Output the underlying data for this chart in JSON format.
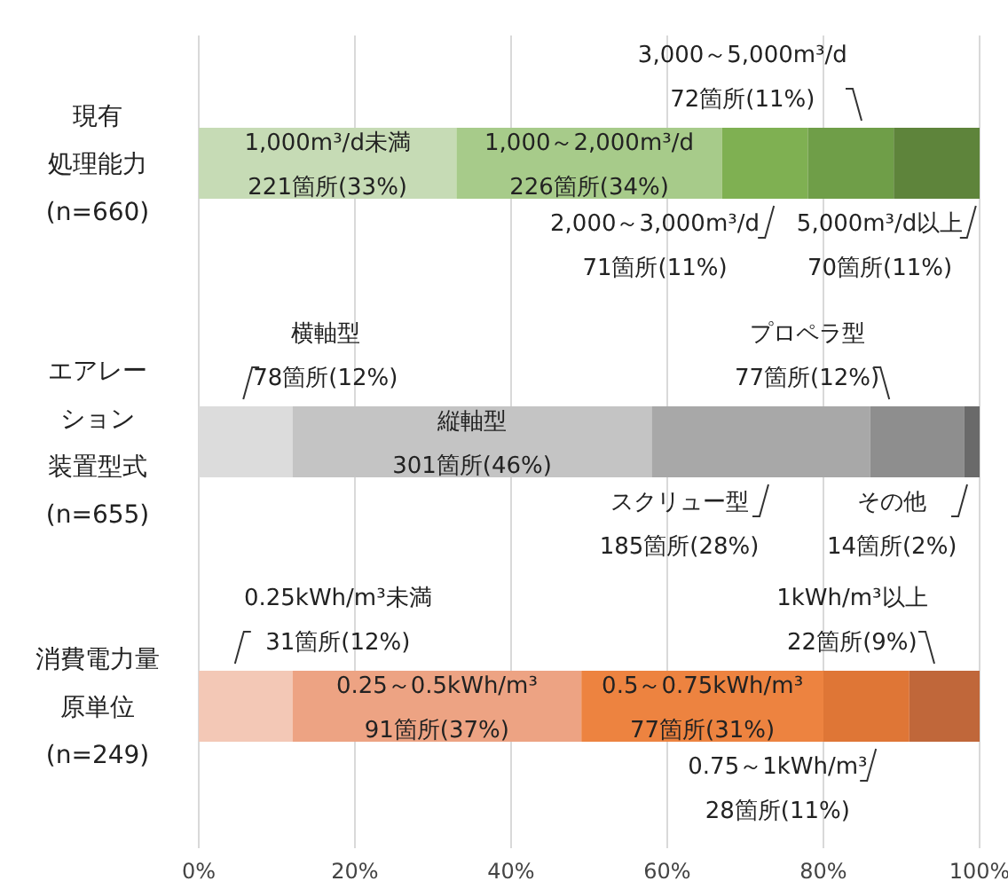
{
  "chart_data": {
    "type": "bar",
    "orientation": "horizontal",
    "stacked": true,
    "categories": [
      "現有処理能力(n=660)",
      "エアレーション装置型式(n=655)",
      "消費電力量原単位(n=249)"
    ],
    "series": [
      {
        "colors": [
          "#c6dbb5",
          "#dcdcdc",
          "#f3c8b6"
        ],
        "values": [
          33,
          12,
          12
        ],
        "value_labels": [
          "1,000m³/d未満\n221箇所(33%)",
          "横軸型\n78箇所(12%)",
          "0.25kWh/m³未満\n31箇所(12%)"
        ]
      },
      {
        "colors": [
          "#a7cb8a",
          "#c4c4c4",
          "#eda383"
        ],
        "values": [
          34,
          46,
          37
        ],
        "value_labels": [
          "1,000～2,000m³/d\n226箇所(34%)",
          "縦軸型\n301箇所(46%)",
          "0.25～0.5kWh/m³\n91箇所(37%)"
        ]
      },
      {
        "colors": [
          "#7fb052",
          "#a8a8a8",
          "#ed8340"
        ],
        "values": [
          11,
          28,
          31
        ],
        "value_labels": [
          "2,000～3,000m³/d\n71箇所(11%)",
          "スクリュー型\n185箇所(28%)",
          "0.5～0.75kWh/m³\n77箇所(31%)"
        ]
      },
      {
        "colors": [
          "#6f9e48",
          "#8e8e8e",
          "#df7636"
        ],
        "values": [
          11,
          12,
          11
        ],
        "value_labels": [
          "3,000～5,000m³/d\n72箇所(11%)",
          "プロペラ型\n77箇所(12%)",
          "0.75～1kWh/m³\n28箇所(11%)"
        ]
      },
      {
        "colors": [
          "#5e843b",
          "#6a6a6a",
          "#c0673a"
        ],
        "values": [
          11,
          2,
          9
        ],
        "value_labels": [
          "5,000m³/d以上\n70箇所(11%)",
          "その他\n14箇所(2%)",
          "1kWh/m³以上\n22箇所(9%)"
        ]
      }
    ],
    "xlim": [
      0,
      100
    ],
    "xticks": [
      {
        "value": 0,
        "label": "0%"
      },
      {
        "value": 20,
        "label": "20%"
      },
      {
        "value": 40,
        "label": "40%"
      },
      {
        "value": 60,
        "label": "60%"
      },
      {
        "value": 80,
        "label": "80%"
      },
      {
        "value": 100,
        "label": "100%"
      }
    ],
    "grid": "x"
  }
}
